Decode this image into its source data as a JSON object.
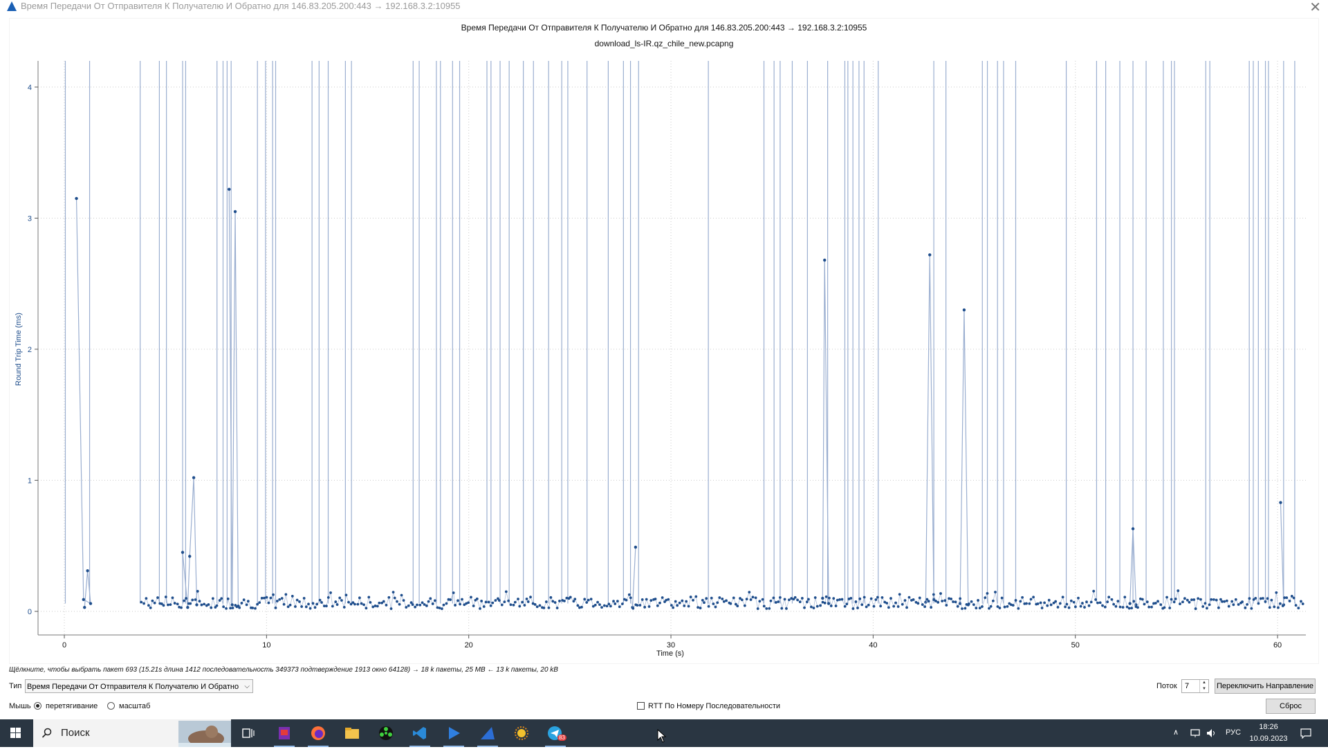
{
  "window": {
    "title": "Время Передачи От Отправителя К Получателю И Обратно для 146.83.205.200:443 → 192.168.3.2:10955",
    "icon": "wireshark-fin-icon",
    "close_glyph": "✕"
  },
  "chart_data": {
    "type": "scatter",
    "title": "Время Передачи От Отправителя К Получателю И Обратно для 146.83.205.200:443 → 192.168.3.2:10955",
    "subtitle": "download_ls-IR.qz_chile_new.pcapng",
    "xlabel": "Time (s)",
    "ylabel": "Round Trip Time (ms)",
    "xlim": [
      -1.3,
      61.4
    ],
    "ylim": [
      -0.18,
      4.2
    ],
    "xticks": [
      0,
      10,
      20,
      30,
      40,
      50,
      60
    ],
    "yticks": [
      0,
      1,
      2,
      3,
      4
    ],
    "grid": true,
    "series_color": "#1f4e8c",
    "spike_color": "#9aaed0",
    "vertical_spikes_x": [
      0.05,
      1.25,
      3.75,
      4.7,
      5.05,
      5.85,
      6.0,
      7.55,
      7.85,
      8.05,
      8.25,
      9.55,
      9.95,
      10.3,
      10.45,
      12.25,
      12.6,
      13.05,
      13.9,
      14.2,
      17.25,
      17.55,
      18.4,
      18.6,
      19.2,
      19.55,
      20.9,
      21.1,
      21.55,
      22.0,
      22.7,
      23.2,
      23.95,
      24.6,
      24.9,
      25.85,
      26.9,
      27.65,
      28.0,
      28.4,
      31.85,
      34.6,
      35.1,
      35.4,
      36.0,
      36.75,
      37.75,
      38.6,
      38.75,
      39.0,
      39.3,
      39.55,
      40.25,
      43.0,
      43.6,
      45.4,
      45.65,
      46.15,
      46.45,
      47.05,
      49.55,
      51.05,
      51.5,
      52.2,
      52.85,
      53.5,
      54.35,
      54.75,
      54.9,
      56.45,
      56.65,
      58.6,
      58.8,
      59.05,
      59.4,
      59.55,
      60.3,
      60.85
    ],
    "lines": [
      [
        [
          0.6,
          3.15
        ],
        [
          0.95,
          0.09
        ],
        [
          1.3,
          0.06
        ],
        [
          1.15,
          0.31
        ],
        [
          1.0,
          0.03
        ]
      ],
      [
        [
          5.85,
          0.45
        ],
        [
          6.1,
          0.03
        ],
        [
          6.2,
          0.42
        ],
        [
          6.4,
          1.02
        ],
        [
          6.55,
          0.05
        ]
      ],
      [
        [
          8.15,
          3.22
        ],
        [
          8.3,
          0.05
        ],
        [
          8.45,
          3.05
        ],
        [
          8.6,
          0.04
        ]
      ],
      [
        [
          28.25,
          0.49
        ],
        [
          28.1,
          0.03
        ]
      ],
      [
        [
          37.5,
          0.1
        ],
        [
          37.6,
          2.68
        ],
        [
          37.8,
          0.06
        ]
      ],
      [
        [
          42.6,
          0.07
        ],
        [
          42.8,
          2.72
        ],
        [
          43.0,
          0.09
        ]
      ],
      [
        [
          44.3,
          0.06
        ],
        [
          44.5,
          2.3
        ],
        [
          44.7,
          0.05
        ]
      ],
      [
        [
          52.7,
          0.06
        ],
        [
          52.85,
          0.63
        ],
        [
          53.0,
          0.05
        ]
      ],
      [
        [
          60.15,
          0.83
        ],
        [
          60.3,
          0.05
        ]
      ]
    ],
    "baseline_range_x": [
      3.8,
      61.3
    ],
    "baseline_rtt": 0.06
  },
  "status": {
    "hint": "Щёлкните, чтобы выбрать пакет 693 (15.21s длина 1412 последовательность 349373 подтверждение 1913 окно 64128) → 18 k пакеты, 25 MB ← 13 k пакеты, 20 kB"
  },
  "controls": {
    "type_label": "Тип",
    "type_value": "Время Передачи От Отправителя К Получателю И Обратно",
    "stream_label": "Поток",
    "stream_value": "7",
    "switch_direction_button": "Переключить Направление",
    "mouse_label": "Мышь",
    "mouse_drag_option": "перетягивание",
    "mouse_zoom_option": "масштаб",
    "rtt_by_seq_checkbox": "RTT По Номеру Последовательности",
    "reset_button": "Сброс"
  },
  "taskbar": {
    "search_placeholder": "Поиск",
    "language": "РУС",
    "time": "18:26",
    "date": "10.09.2023",
    "telegram_badge": "83",
    "apps": [
      "task-view-icon",
      "archive-app-icon",
      "firefox-icon",
      "file-explorer-icon",
      "green-app-icon",
      "vscode-icon",
      "media-player-icon",
      "wireshark-icon",
      "sun-app-icon",
      "telegram-icon"
    ]
  }
}
